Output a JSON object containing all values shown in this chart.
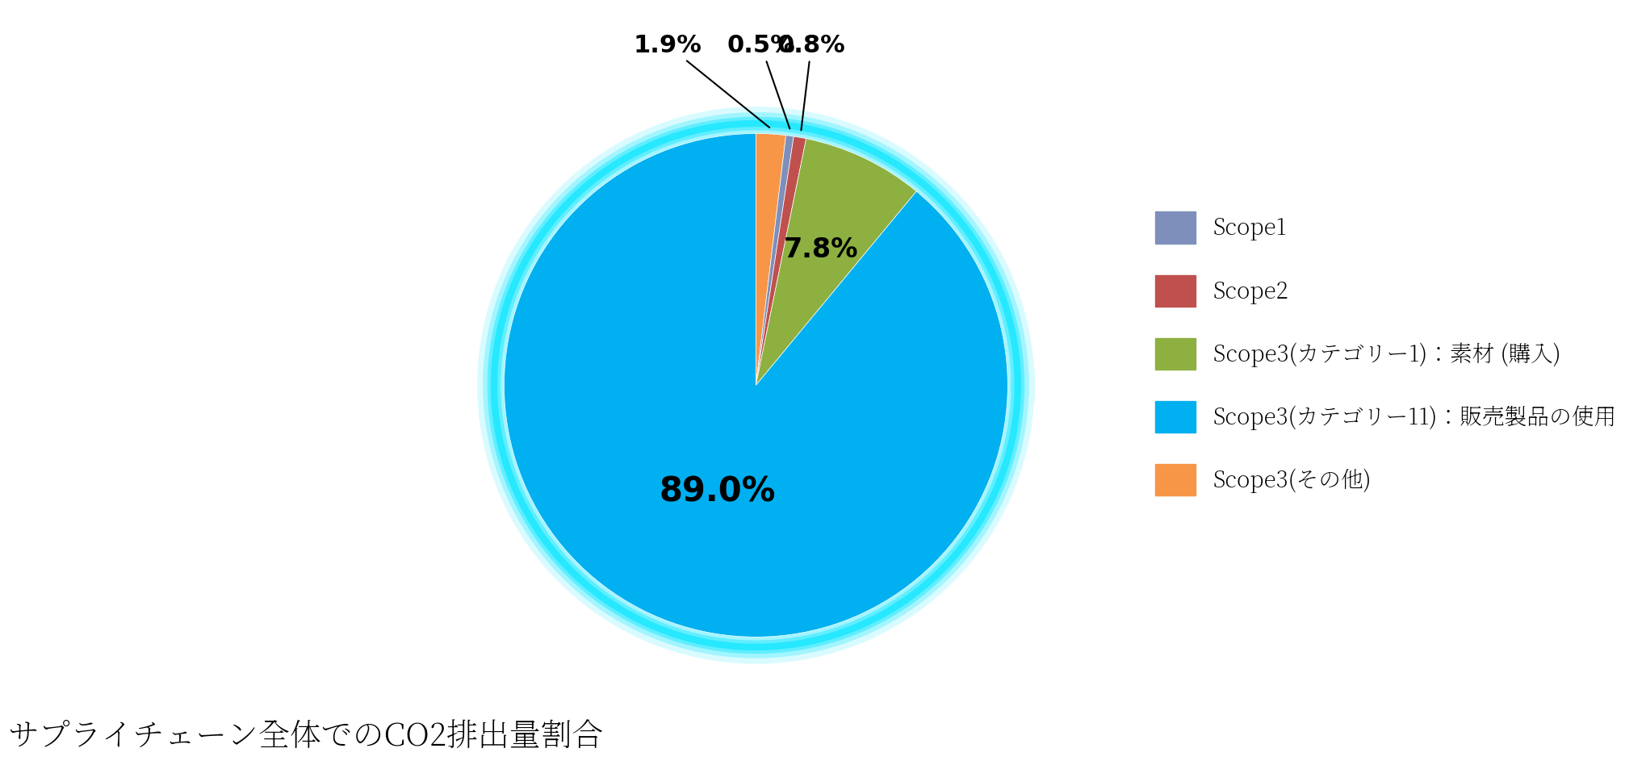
{
  "labels": [
    "Scope3(その他)",
    "Scope1",
    "Scope2",
    "Scope3(カテゴリー1)：素材 (購入)",
    "Scope3(カテゴリー11)：販売製品の使用"
  ],
  "values": [
    1.9,
    0.5,
    0.8,
    7.8,
    89.0
  ],
  "colors": [
    "#f79646",
    "#7f8fbb",
    "#c0504d",
    "#8db040",
    "#00b0f0"
  ],
  "title": "サプライチェーン全体でのCO2排出量割合",
  "background_color": "#ffffff",
  "legend_labels": [
    "Scope1",
    "Scope2",
    "Scope3(カテゴリー1)：素材 (購入)",
    "Scope3(カテゴリー11)：販売製品の使用",
    "Scope3(その他)"
  ],
  "legend_colors": [
    "#7f8fbb",
    "#c0504d",
    "#8db040",
    "#00b0f0",
    "#f79646"
  ],
  "outer_pct_labels": [
    {
      "text": "1.9%",
      "slice_idx": 0
    },
    {
      "text": "0.5%",
      "slice_idx": 1
    },
    {
      "text": "0.8%",
      "slice_idx": 2
    }
  ],
  "inner_pct_label": {
    "text": "7.8%",
    "slice_idx": 3
  },
  "main_pct_label": {
    "text": "89.0%",
    "slice_idx": 4
  },
  "glow_color": "#00e5ff",
  "glow_linewidth": 18
}
